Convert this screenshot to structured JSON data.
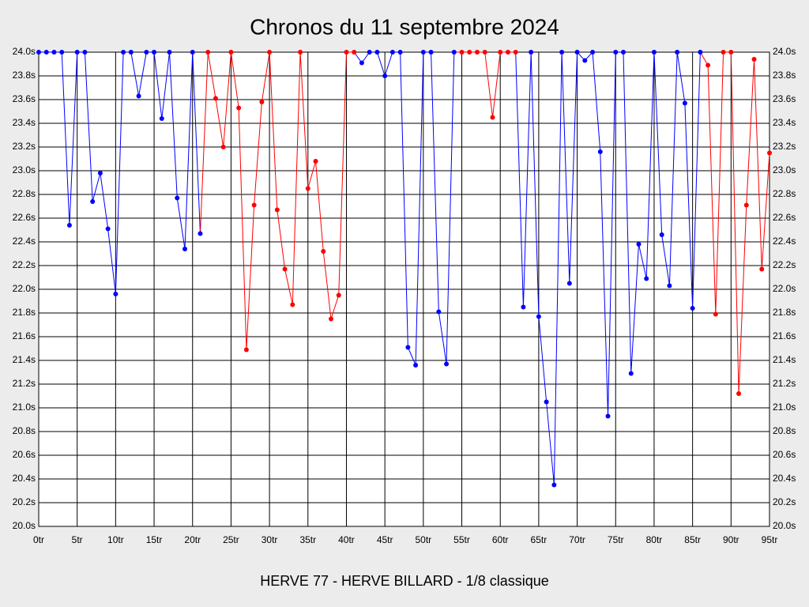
{
  "chart_data": {
    "type": "line",
    "title": "Chronos du 11 septembre 2024",
    "xlabel": "HERVE 77 - HERVE BILLARD - 1/8 classique",
    "grid": true,
    "xlim": [
      0,
      95
    ],
    "ylim": [
      20,
      24
    ],
    "xticks": [
      {
        "value": 0,
        "label": "0tr"
      },
      {
        "value": 5,
        "label": "5tr"
      },
      {
        "value": 10,
        "label": "10tr"
      },
      {
        "value": 15,
        "label": "15tr"
      },
      {
        "value": 20,
        "label": "20tr"
      },
      {
        "value": 25,
        "label": "25tr"
      },
      {
        "value": 30,
        "label": "30tr"
      },
      {
        "value": 35,
        "label": "35tr"
      },
      {
        "value": 40,
        "label": "40tr"
      },
      {
        "value": 45,
        "label": "45tr"
      },
      {
        "value": 50,
        "label": "50tr"
      },
      {
        "value": 55,
        "label": "55tr"
      },
      {
        "value": 60,
        "label": "60tr"
      },
      {
        "value": 65,
        "label": "65tr"
      },
      {
        "value": 70,
        "label": "70tr"
      },
      {
        "value": 75,
        "label": "75tr"
      },
      {
        "value": 80,
        "label": "80tr"
      },
      {
        "value": 85,
        "label": "85tr"
      },
      {
        "value": 90,
        "label": "90tr"
      },
      {
        "value": 95,
        "label": "95tr"
      }
    ],
    "yticks": [
      {
        "value": 20.0,
        "label": "20.0s"
      },
      {
        "value": 20.2,
        "label": "20.2s"
      },
      {
        "value": 20.4,
        "label": "20.4s"
      },
      {
        "value": 20.6,
        "label": "20.6s"
      },
      {
        "value": 20.8,
        "label": "20.8s"
      },
      {
        "value": 21.0,
        "label": "21.0s"
      },
      {
        "value": 21.2,
        "label": "21.2s"
      },
      {
        "value": 21.4,
        "label": "21.4s"
      },
      {
        "value": 21.6,
        "label": "21.6s"
      },
      {
        "value": 21.8,
        "label": "21.8s"
      },
      {
        "value": 22.0,
        "label": "22.0s"
      },
      {
        "value": 22.2,
        "label": "22.2s"
      },
      {
        "value": 22.4,
        "label": "22.4s"
      },
      {
        "value": 22.6,
        "label": "22.6s"
      },
      {
        "value": 22.8,
        "label": "22.8s"
      },
      {
        "value": 23.0,
        "label": "23.0s"
      },
      {
        "value": 23.2,
        "label": "23.2s"
      },
      {
        "value": 23.4,
        "label": "23.4s"
      },
      {
        "value": 23.6,
        "label": "23.6s"
      },
      {
        "value": 23.8,
        "label": "23.8s"
      },
      {
        "value": 24.0,
        "label": "24.0s"
      }
    ],
    "series": [
      {
        "x": [
          0,
          1,
          2,
          3,
          4,
          5,
          6,
          7,
          8,
          9,
          10,
          11,
          12,
          13,
          14,
          15,
          16,
          17,
          18,
          19,
          20,
          21,
          22,
          23,
          24,
          25,
          26,
          27,
          28,
          29,
          30,
          31,
          32,
          33,
          34,
          35,
          36,
          37,
          38,
          39,
          40,
          41,
          42,
          43,
          44,
          45,
          46,
          47,
          48,
          49,
          50,
          51,
          52,
          53,
          54,
          55,
          56,
          57,
          58,
          59,
          60,
          61,
          62,
          63,
          64,
          65,
          66,
          67,
          68,
          69,
          70,
          71,
          72,
          73,
          74,
          75,
          76,
          77,
          78,
          79,
          80,
          81,
          82,
          83,
          84,
          85,
          86,
          87,
          88,
          89,
          90,
          91,
          92,
          93,
          94,
          95
        ],
        "values": [
          24,
          24,
          24,
          24,
          22.54,
          24,
          24,
          22.74,
          22.98,
          22.51,
          21.96,
          24,
          24,
          23.63,
          24,
          24,
          23.44,
          24,
          22.77,
          22.34,
          24,
          22.47,
          24,
          23.61,
          23.2,
          24,
          23.53,
          21.49,
          22.71,
          23.58,
          24,
          22.67,
          22.17,
          21.87,
          24,
          22.85,
          23.08,
          22.32,
          21.75,
          21.95,
          24,
          24,
          23.91,
          24,
          24,
          23.8,
          24,
          24,
          21.51,
          21.36,
          24,
          24,
          21.81,
          21.37,
          24,
          24,
          24,
          24,
          24,
          23.45,
          24,
          24,
          24,
          21.85,
          24,
          21.77,
          21.05,
          20.35,
          24,
          22.05,
          24,
          23.93,
          24,
          23.16,
          20.93,
          24,
          24,
          21.29,
          22.38,
          22.09,
          24,
          22.46,
          22.03,
          24,
          23.57,
          21.84,
          24,
          23.89,
          21.79,
          24,
          24,
          21.12,
          22.71,
          23.94,
          22.17,
          23.15
        ],
        "colors": [
          "#0000ff",
          "#0000ff",
          "#0000ff",
          "#0000ff",
          "#0000ff",
          "#0000ff",
          "#0000ff",
          "#0000ff",
          "#0000ff",
          "#0000ff",
          "#0000ff",
          "#0000ff",
          "#0000ff",
          "#0000ff",
          "#0000ff",
          "#0000ff",
          "#0000ff",
          "#0000ff",
          "#0000ff",
          "#0000ff",
          "#0000ff",
          "#0000ff",
          "#ff0000",
          "#ff0000",
          "#ff0000",
          "#ff0000",
          "#ff0000",
          "#ff0000",
          "#ff0000",
          "#ff0000",
          "#ff0000",
          "#ff0000",
          "#ff0000",
          "#ff0000",
          "#ff0000",
          "#ff0000",
          "#ff0000",
          "#ff0000",
          "#ff0000",
          "#ff0000",
          "#ff0000",
          "#ff0000",
          "#0000ff",
          "#0000ff",
          "#0000ff",
          "#0000ff",
          "#0000ff",
          "#0000ff",
          "#0000ff",
          "#0000ff",
          "#0000ff",
          "#0000ff",
          "#0000ff",
          "#0000ff",
          "#0000ff",
          "#ff0000",
          "#ff0000",
          "#ff0000",
          "#ff0000",
          "#ff0000",
          "#ff0000",
          "#ff0000",
          "#ff0000",
          "#0000ff",
          "#0000ff",
          "#0000ff",
          "#0000ff",
          "#0000ff",
          "#0000ff",
          "#0000ff",
          "#0000ff",
          "#0000ff",
          "#0000ff",
          "#0000ff",
          "#0000ff",
          "#0000ff",
          "#0000ff",
          "#0000ff",
          "#0000ff",
          "#0000ff",
          "#0000ff",
          "#0000ff",
          "#0000ff",
          "#0000ff",
          "#0000ff",
          "#0000ff",
          "#0000ff",
          "#ff0000",
          "#ff0000",
          "#ff0000",
          "#ff0000",
          "#ff0000",
          "#ff0000",
          "#ff0000",
          "#ff0000",
          "#ff0000"
        ]
      }
    ]
  }
}
